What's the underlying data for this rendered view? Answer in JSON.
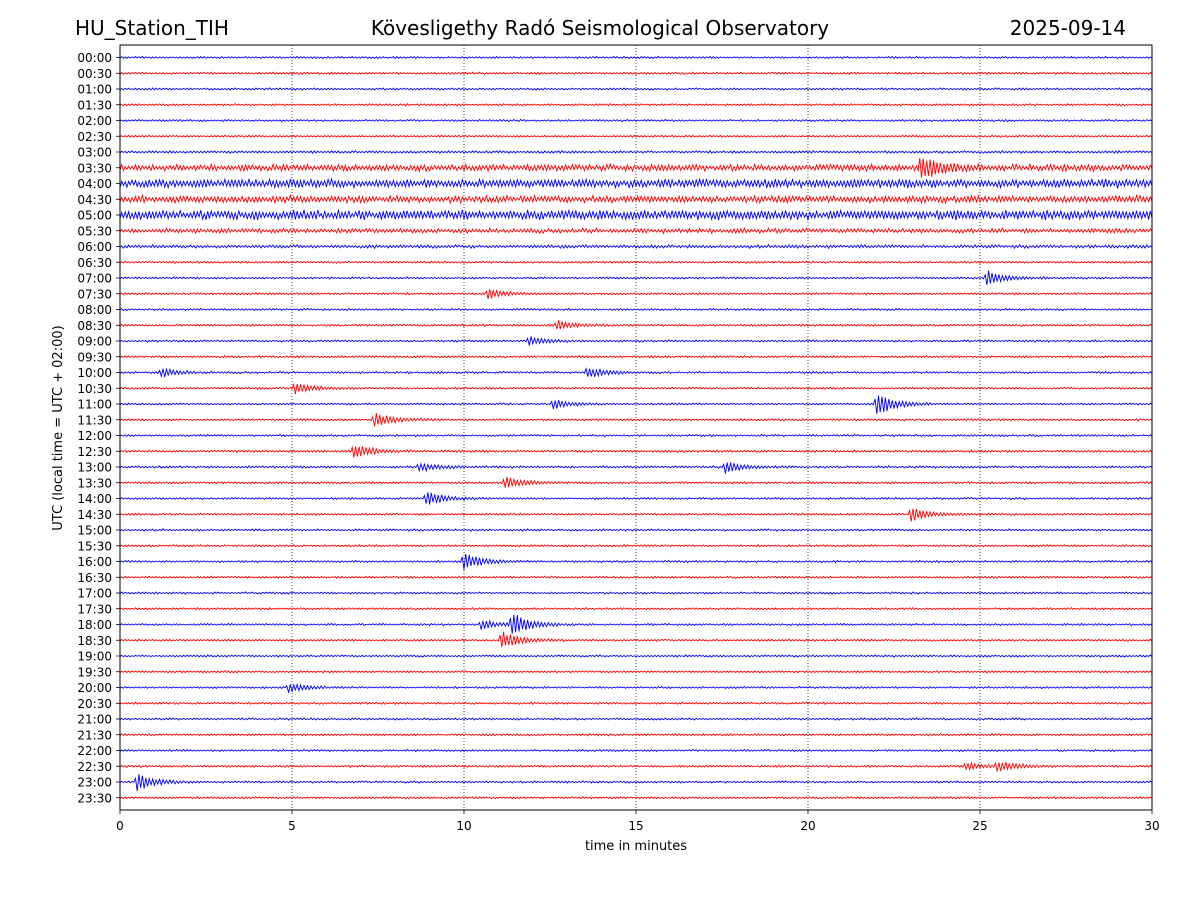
{
  "header": {
    "station": "HU_Station_TIH",
    "observatory": "Kövesligethy Radó Seismological Observatory",
    "date": "2025-09-14"
  },
  "chart_data": {
    "type": "line",
    "title": "Kövesligethy Radó Seismological Observatory",
    "xlabel": "time in minutes",
    "ylabel": "UTC (local time = UTC + 02:00)",
    "xlim": [
      0,
      30
    ],
    "x_ticks": [
      "0",
      "5",
      "10",
      "15",
      "20",
      "25",
      "30"
    ],
    "grid": "vertical dotted lines at 5-minute ticks",
    "legend": "none",
    "colors": {
      "even_rows": "#0000ff",
      "odd_rows": "#ff0000",
      "grid": "#000000"
    },
    "rows": [
      "00:00",
      "00:30",
      "01:00",
      "01:30",
      "02:00",
      "02:30",
      "03:00",
      "03:30",
      "04:00",
      "04:30",
      "05:00",
      "05:30",
      "06:00",
      "06:30",
      "07:00",
      "07:30",
      "08:00",
      "08:30",
      "09:00",
      "09:30",
      "10:00",
      "10:30",
      "11:00",
      "11:30",
      "12:00",
      "12:30",
      "13:00",
      "13:30",
      "14:00",
      "14:30",
      "15:00",
      "15:30",
      "16:00",
      "16:30",
      "17:00",
      "17:30",
      "18:00",
      "18:30",
      "19:00",
      "19:30",
      "20:00",
      "20:30",
      "21:00",
      "21:30",
      "22:00",
      "22:30",
      "23:00",
      "23:30"
    ],
    "noise_level": [
      1,
      1,
      1,
      1,
      1,
      1,
      1.2,
      3.2,
      4.2,
      3.4,
      4.6,
      2.2,
      1.6,
      1,
      1,
      1,
      1,
      1,
      1,
      1,
      1,
      1,
      1,
      1,
      1,
      1.1,
      1.1,
      1,
      1,
      1,
      1,
      1,
      1,
      1,
      1,
      1,
      1,
      1,
      1,
      1,
      1,
      1,
      1,
      1,
      1,
      1,
      1,
      1
    ],
    "events": [
      {
        "row": "03:30",
        "minute": 23.3,
        "amplitude": 5
      },
      {
        "row": "07:00",
        "minute": 25.2,
        "amplitude": 2.5
      },
      {
        "row": "07:30",
        "minute": 10.7,
        "amplitude": 1.5
      },
      {
        "row": "08:30",
        "minute": 12.7,
        "amplitude": 1.5
      },
      {
        "row": "09:00",
        "minute": 11.9,
        "amplitude": 1.5
      },
      {
        "row": "10:00",
        "minute": 13.6,
        "amplitude": 2
      },
      {
        "row": "10:00",
        "minute": 1.2,
        "amplitude": 1.5
      },
      {
        "row": "10:30",
        "minute": 5.1,
        "amplitude": 2
      },
      {
        "row": "11:00",
        "minute": 22.0,
        "amplitude": 4
      },
      {
        "row": "11:00",
        "minute": 12.6,
        "amplitude": 1.5
      },
      {
        "row": "11:30",
        "minute": 7.4,
        "amplitude": 2.5
      },
      {
        "row": "12:30",
        "minute": 6.8,
        "amplitude": 2.5
      },
      {
        "row": "13:00",
        "minute": 17.6,
        "amplitude": 2
      },
      {
        "row": "13:00",
        "minute": 8.7,
        "amplitude": 1.5
      },
      {
        "row": "13:30",
        "minute": 11.2,
        "amplitude": 2
      },
      {
        "row": "14:00",
        "minute": 8.9,
        "amplitude": 2.5
      },
      {
        "row": "14:30",
        "minute": 23.0,
        "amplitude": 2.5
      },
      {
        "row": "16:00",
        "minute": 10.0,
        "amplitude": 3
      },
      {
        "row": "18:00",
        "minute": 11.4,
        "amplitude": 4
      },
      {
        "row": "18:00",
        "minute": 10.5,
        "amplitude": 1.5
      },
      {
        "row": "18:30",
        "minute": 11.1,
        "amplitude": 3
      },
      {
        "row": "20:00",
        "minute": 4.9,
        "amplitude": 1.5
      },
      {
        "row": "22:30",
        "minute": 25.5,
        "amplitude": 2
      },
      {
        "row": "22:30",
        "minute": 24.6,
        "amplitude": 1.2
      },
      {
        "row": "23:00",
        "minute": 0.5,
        "amplitude": 3
      }
    ]
  }
}
